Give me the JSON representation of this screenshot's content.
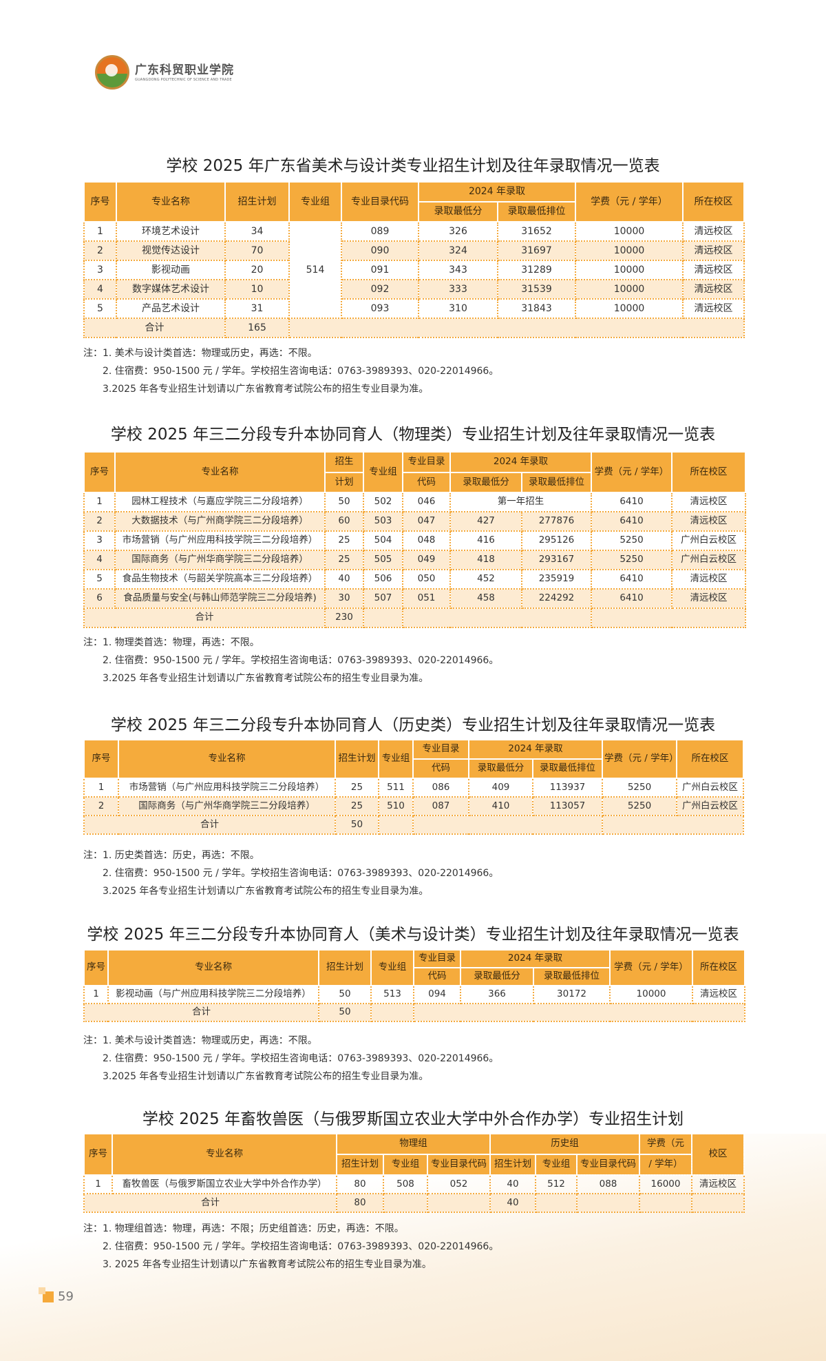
{
  "logo": {
    "name_cn": "广东科贸职业学院",
    "name_en": "GUANGDONG POLYTECHNIC OF SCIENCE AND TRADE"
  },
  "colors": {
    "header": "#f5ab3c",
    "row_alt": "#fdebd2",
    "border": "#f5a93a"
  },
  "page_number": "59",
  "sections": [
    {
      "title": "学校 2025 年广东省美术与设计类专业招生计划及往年录取情况一览表",
      "header_rows": [
        [
          {
            "t": "序号",
            "rs": 2
          },
          {
            "t": "专业名称",
            "rs": 2
          },
          {
            "t": "招生计划",
            "rs": 2
          },
          {
            "t": "专业组",
            "rs": 2
          },
          {
            "t": "专业目录代码",
            "rs": 2
          },
          {
            "t": "2024 年录取",
            "cs": 2
          },
          {
            "t": "学费（元 / 学年）",
            "rs": 2
          },
          {
            "t": "所在校区",
            "rs": 2
          }
        ],
        [
          {
            "t": "录取最低分"
          },
          {
            "t": "录取最低排位"
          }
        ]
      ],
      "rows": [
        [
          {
            "t": "1"
          },
          {
            "t": "环境艺术设计"
          },
          {
            "t": "34"
          },
          {
            "t": "514",
            "rs": 5
          },
          {
            "t": "089"
          },
          {
            "t": "326"
          },
          {
            "t": "31652"
          },
          {
            "t": "10000"
          },
          {
            "t": "清远校区"
          }
        ],
        [
          {
            "t": "2"
          },
          {
            "t": "视觉传达设计"
          },
          {
            "t": "70"
          },
          {
            "t": "090"
          },
          {
            "t": "324"
          },
          {
            "t": "31697"
          },
          {
            "t": "10000"
          },
          {
            "t": "清远校区"
          }
        ],
        [
          {
            "t": "3"
          },
          {
            "t": "影视动画"
          },
          {
            "t": "20"
          },
          {
            "t": "091"
          },
          {
            "t": "343"
          },
          {
            "t": "31289"
          },
          {
            "t": "10000"
          },
          {
            "t": "清远校区"
          }
        ],
        [
          {
            "t": "4"
          },
          {
            "t": "数字媒体艺术设计"
          },
          {
            "t": "10"
          },
          {
            "t": "092"
          },
          {
            "t": "333"
          },
          {
            "t": "31539"
          },
          {
            "t": "10000"
          },
          {
            "t": "清远校区"
          }
        ],
        [
          {
            "t": "5"
          },
          {
            "t": "产品艺术设计"
          },
          {
            "t": "31"
          },
          {
            "t": "093"
          },
          {
            "t": "310"
          },
          {
            "t": "31843"
          },
          {
            "t": "10000"
          },
          {
            "t": "清远校区"
          }
        ]
      ],
      "total": [
        {
          "t": "合计",
          "cs": 2
        },
        {
          "t": "165"
        },
        {
          "t": "",
          "cs": 6
        }
      ],
      "notes": [
        "注：1. 美术与设计类首选：物理或历史，再选：不限。",
        "2. 住宿费：950-1500 元 / 学年。学校招生咨询电话：0763-3989393、020-22014966。",
        "3.2025 年各专业招生计划请以广东省教育考试院公布的招生专业目录为准。"
      ]
    },
    {
      "title": "学校 2025 年三二分段专升本协同育人（物理类）专业招生计划及往年录取情况一览表",
      "header_rows": [
        [
          {
            "t": "序号",
            "rs": 2
          },
          {
            "t": "专业名称",
            "rs": 2
          },
          {
            "t": "招生",
            "rs": 1
          },
          {
            "t": "专业组",
            "rs": 2
          },
          {
            "t": "专业目录",
            "rs": 1
          },
          {
            "t": "2024 年录取",
            "cs": 2
          },
          {
            "t": "学费（元 / 学年）",
            "rs": 2
          },
          {
            "t": "所在校区",
            "rs": 2
          }
        ],
        [
          {
            "t": "计划"
          },
          {
            "t": "代码"
          },
          {
            "t": "录取最低分"
          },
          {
            "t": "录取最低排位"
          }
        ]
      ],
      "rows": [
        [
          {
            "t": "1"
          },
          {
            "t": "园林工程技术（与嘉应学院三二分段培养）"
          },
          {
            "t": "50"
          },
          {
            "t": "502"
          },
          {
            "t": "046"
          },
          {
            "t": "第一年招生",
            "cs": 2
          },
          {
            "t": "6410"
          },
          {
            "t": "清远校区"
          }
        ],
        [
          {
            "t": "2"
          },
          {
            "t": "大数据技术（与广州商学院三二分段培养）"
          },
          {
            "t": "60"
          },
          {
            "t": "503"
          },
          {
            "t": "047"
          },
          {
            "t": "427"
          },
          {
            "t": "277876"
          },
          {
            "t": "6410"
          },
          {
            "t": "清远校区"
          }
        ],
        [
          {
            "t": "3"
          },
          {
            "t": "市场营销（与广州应用科技学院三二分段培养）"
          },
          {
            "t": "25"
          },
          {
            "t": "504"
          },
          {
            "t": "048"
          },
          {
            "t": "416"
          },
          {
            "t": "295126"
          },
          {
            "t": "5250"
          },
          {
            "t": "广州白云校区"
          }
        ],
        [
          {
            "t": "4"
          },
          {
            "t": "国际商务（与广州华商学院三二分段培养）"
          },
          {
            "t": "25"
          },
          {
            "t": "505"
          },
          {
            "t": "049"
          },
          {
            "t": "418"
          },
          {
            "t": "293167"
          },
          {
            "t": "5250"
          },
          {
            "t": "广州白云校区"
          }
        ],
        [
          {
            "t": "5"
          },
          {
            "t": "食品生物技术（与韶关学院高本三二分段培养）"
          },
          {
            "t": "40"
          },
          {
            "t": "506"
          },
          {
            "t": "050"
          },
          {
            "t": "452"
          },
          {
            "t": "235919"
          },
          {
            "t": "6410"
          },
          {
            "t": "清远校区"
          }
        ],
        [
          {
            "t": "6"
          },
          {
            "t": "食品质量与安全(与韩山师范学院三二分段培养)"
          },
          {
            "t": "30"
          },
          {
            "t": "507"
          },
          {
            "t": "051"
          },
          {
            "t": "458"
          },
          {
            "t": "224292"
          },
          {
            "t": "6410"
          },
          {
            "t": "清远校区"
          }
        ]
      ],
      "total": [
        {
          "t": "合计",
          "cs": 2
        },
        {
          "t": "230"
        },
        {
          "t": ""
        },
        {
          "t": "",
          "cs": 3
        },
        {
          "t": "",
          "cs": 2
        }
      ],
      "notes": [
        "注：1. 物理类首选：物理，再选：不限。",
        "2. 住宿费：950-1500 元 / 学年。学校招生咨询电话：0763-3989393、020-22014966。",
        "3.2025 年各专业招生计划请以广东省教育考试院公布的招生专业目录为准。"
      ]
    },
    {
      "title": "学校 2025 年三二分段专升本协同育人（历史类）专业招生计划及往年录取情况一览表",
      "header_rows": [
        [
          {
            "t": "序号",
            "rs": 2
          },
          {
            "t": "专业名称",
            "rs": 2
          },
          {
            "t": "招生计划",
            "rs": 2
          },
          {
            "t": "专业组",
            "rs": 2
          },
          {
            "t": "专业目录",
            "rs": 1
          },
          {
            "t": "2024 年录取",
            "cs": 2
          },
          {
            "t": "学费（元 / 学年）",
            "rs": 2
          },
          {
            "t": "所在校区",
            "rs": 2
          }
        ],
        [
          {
            "t": "代码"
          },
          {
            "t": "录取最低分"
          },
          {
            "t": "录取最低排位"
          }
        ]
      ],
      "rows": [
        [
          {
            "t": "1"
          },
          {
            "t": "市场营销（与广州应用科技学院三二分段培养）"
          },
          {
            "t": "25"
          },
          {
            "t": "511"
          },
          {
            "t": "086"
          },
          {
            "t": "409"
          },
          {
            "t": "113937"
          },
          {
            "t": "5250"
          },
          {
            "t": "广州白云校区"
          }
        ],
        [
          {
            "t": "2"
          },
          {
            "t": "国际商务（与广州华商学院三二分段培养）"
          },
          {
            "t": "25"
          },
          {
            "t": "510"
          },
          {
            "t": "087"
          },
          {
            "t": "410"
          },
          {
            "t": "113057"
          },
          {
            "t": "5250"
          },
          {
            "t": "广州白云校区"
          }
        ]
      ],
      "total": [
        {
          "t": "合计",
          "cs": 2
        },
        {
          "t": "50"
        },
        {
          "t": ""
        },
        {
          "t": "",
          "cs": 3
        },
        {
          "t": "",
          "cs": 2
        }
      ],
      "notes": [
        "注：1. 历史类首选：历史，再选：不限。",
        "2. 住宿费：950-1500 元 / 学年。学校招生咨询电话：0763-3989393、020-22014966。",
        "3.2025 年各专业招生计划请以广东省教育考试院公布的招生专业目录为准。"
      ]
    },
    {
      "title": "学校 2025 年三二分段专升本协同育人（美术与设计类）专业招生计划及往年录取情况一览表",
      "header_rows": [
        [
          {
            "t": "序号",
            "rs": 2
          },
          {
            "t": "专业名称",
            "rs": 2
          },
          {
            "t": "招生计划",
            "rs": 2
          },
          {
            "t": "专业组",
            "rs": 2
          },
          {
            "t": "专业目录",
            "rs": 1
          },
          {
            "t": "2024 年录取",
            "cs": 2
          },
          {
            "t": "学费（元 / 学年）",
            "rs": 2
          },
          {
            "t": "所在校区",
            "rs": 2
          }
        ],
        [
          {
            "t": "代码"
          },
          {
            "t": "录取最低分"
          },
          {
            "t": "录取最低排位"
          }
        ]
      ],
      "rows": [
        [
          {
            "t": "1"
          },
          {
            "t": "影视动画（与广州应用科技学院三二分段培养）"
          },
          {
            "t": "50"
          },
          {
            "t": "513"
          },
          {
            "t": "094"
          },
          {
            "t": "366"
          },
          {
            "t": "30172"
          },
          {
            "t": "10000"
          },
          {
            "t": "清远校区"
          }
        ]
      ],
      "total": [
        {
          "t": "合计",
          "cs": 2
        },
        {
          "t": "50"
        },
        {
          "t": ""
        },
        {
          "t": "",
          "cs": 5
        }
      ],
      "notes": [
        "注：1. 美术与设计类首选：物理或历史，再选：不限。",
        "2. 住宿费：950-1500 元 / 学年。学校招生咨询电话：0763-3989393、020-22014966。",
        "3.2025 年各专业招生计划请以广东省教育考试院公布的招生专业目录为准。"
      ]
    },
    {
      "title": "学校 2025 年畜牧兽医（与俄罗斯国立农业大学中外合作办学）专业招生计划",
      "header_rows": [
        [
          {
            "t": "序号",
            "rs": 2
          },
          {
            "t": "专业名称",
            "rs": 2
          },
          {
            "t": "物理组",
            "cs": 3
          },
          {
            "t": "历史组",
            "cs": 3
          },
          {
            "t": "学费（元",
            "rs": 1
          },
          {
            "t": "校区",
            "rs": 2
          }
        ],
        [
          {
            "t": "招生计划"
          },
          {
            "t": "专业组"
          },
          {
            "t": "专业目录代码"
          },
          {
            "t": "招生计划"
          },
          {
            "t": "专业组"
          },
          {
            "t": "专业目录代码"
          },
          {
            "t": "/ 学年）"
          }
        ]
      ],
      "rows": [
        [
          {
            "t": "1"
          },
          {
            "t": "畜牧兽医（与俄罗斯国立农业大学中外合作办学）"
          },
          {
            "t": "80"
          },
          {
            "t": "508"
          },
          {
            "t": "052"
          },
          {
            "t": "40"
          },
          {
            "t": "512"
          },
          {
            "t": "088"
          },
          {
            "t": "16000"
          },
          {
            "t": "清远校区"
          }
        ]
      ],
      "total": [
        {
          "t": "合计",
          "cs": 2
        },
        {
          "t": "80"
        },
        {
          "t": ""
        },
        {
          "t": ""
        },
        {
          "t": "40"
        },
        {
          "t": ""
        },
        {
          "t": ""
        },
        {
          "t": ""
        },
        {
          "t": ""
        }
      ],
      "notes": [
        "注：1. 物理组首选：物理，再选：不限；历史组首选：历史，再选：不限。",
        "2. 住宿费：950-1500 元 / 学年。学校招生咨询电话：0763-3989393、020-22014966。",
        "3. 2025 年各专业招生计划请以广东省教育考试院公布的招生专业目录为准。"
      ]
    }
  ]
}
